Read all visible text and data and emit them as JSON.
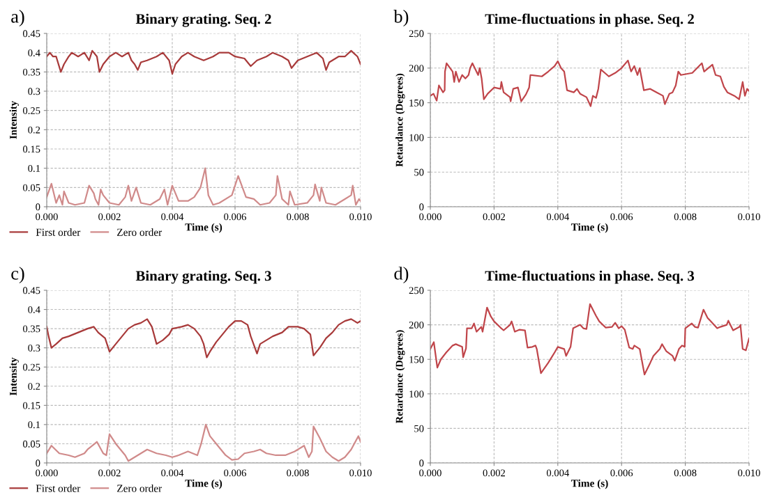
{
  "chart_data": [
    {
      "type": "line",
      "title": "Binary grating. Seq. 2",
      "xlabel": "Time (s)",
      "ylabel": "Intensity",
      "annotations": [
        "a)"
      ],
      "legend": "bottom left",
      "grid": true,
      "marker": "none",
      "line_style": "solid",
      "xlim": [
        0,
        0.01
      ],
      "xticks": [
        {
          "value": 0,
          "label": "0.000"
        },
        {
          "value": 0.002,
          "label": "0.002"
        },
        {
          "value": 0.004,
          "label": "0.004"
        },
        {
          "value": 0.006,
          "label": "0.006"
        },
        {
          "value": 0.008,
          "label": "0.008"
        },
        {
          "value": 0.01,
          "label": "0.010"
        }
      ],
      "ylim": [
        0,
        0.45
      ],
      "yticks": [
        0,
        0.05,
        0.1,
        0.15,
        0.2,
        0.25,
        0.3,
        0.35,
        0.4,
        0.45
      ],
      "series": [
        {
          "name": "First order",
          "color": "#a83a3a",
          "x": [
            0,
            0.0001,
            0.0002,
            0.0003,
            0.00045,
            0.00055,
            0.0007,
            0.0008,
            0.001,
            0.0012,
            0.00135,
            0.00145,
            0.0016,
            0.00168,
            0.0018,
            0.0019,
            0.002,
            0.0022,
            0.0024,
            0.0026,
            0.0027,
            0.0028,
            0.0029,
            0.003,
            0.0032,
            0.0035,
            0.0037,
            0.0039,
            0.004,
            0.0041,
            0.0043,
            0.0045,
            0.0047,
            0.005,
            0.0053,
            0.0055,
            0.0058,
            0.006,
            0.0063,
            0.0065,
            0.0067,
            0.007,
            0.0072,
            0.0075,
            0.0077,
            0.0078,
            0.008,
            0.0083,
            0.0086,
            0.0088,
            0.0089,
            0.009,
            0.0093,
            0.0095,
            0.0097,
            0.0099,
            0.01
          ],
          "values": [
            0.39,
            0.4,
            0.39,
            0.39,
            0.35,
            0.37,
            0.39,
            0.4,
            0.39,
            0.4,
            0.38,
            0.405,
            0.39,
            0.35,
            0.37,
            0.38,
            0.39,
            0.4,
            0.39,
            0.4,
            0.38,
            0.37,
            0.355,
            0.375,
            0.38,
            0.39,
            0.4,
            0.38,
            0.345,
            0.37,
            0.39,
            0.4,
            0.39,
            0.38,
            0.39,
            0.4,
            0.4,
            0.39,
            0.385,
            0.365,
            0.38,
            0.39,
            0.4,
            0.39,
            0.38,
            0.36,
            0.38,
            0.39,
            0.4,
            0.385,
            0.355,
            0.375,
            0.39,
            0.39,
            0.405,
            0.39,
            0.37
          ]
        },
        {
          "name": "Zero order",
          "color": "#d08a8a",
          "x": [
            0,
            0.00015,
            0.0003,
            0.0004,
            0.0005,
            0.00055,
            0.0007,
            0.0009,
            0.0012,
            0.00135,
            0.0015,
            0.00155,
            0.00165,
            0.00172,
            0.0018,
            0.002,
            0.0023,
            0.0025,
            0.0026,
            0.0027,
            0.00285,
            0.003,
            0.0033,
            0.0036,
            0.00375,
            0.00385,
            0.004,
            0.0042,
            0.0045,
            0.0047,
            0.0049,
            0.00505,
            0.00515,
            0.0053,
            0.0055,
            0.0059,
            0.0061,
            0.00635,
            0.0066,
            0.0068,
            0.0071,
            0.0073,
            0.00735,
            0.0075,
            0.0077,
            0.00775,
            0.0079,
            0.0083,
            0.0085,
            0.00855,
            0.0087,
            0.00875,
            0.0089,
            0.0092,
            0.0095,
            0.0097,
            0.00975,
            0.00985,
            0.00995,
            0.01
          ],
          "values": [
            0.025,
            0.06,
            0.01,
            0.03,
            0.005,
            0.04,
            0.01,
            0.005,
            0.01,
            0.055,
            0.035,
            0.02,
            0.005,
            0.045,
            0.03,
            0.01,
            0.005,
            0.025,
            0.055,
            0.015,
            0.05,
            0.01,
            0.005,
            0.02,
            0.045,
            0.005,
            0.055,
            0.015,
            0.015,
            0.025,
            0.05,
            0.1,
            0.03,
            0.005,
            0.01,
            0.03,
            0.08,
            0.025,
            0.02,
            0.005,
            0.01,
            0.03,
            0.08,
            0.02,
            0.005,
            0.04,
            0.005,
            0.01,
            0.03,
            0.058,
            0.015,
            0.05,
            0.01,
            0.005,
            0.02,
            0.03,
            0.055,
            0.005,
            0.02,
            0.015
          ]
        }
      ]
    },
    {
      "type": "line",
      "title": "Time-fluctuations in phase. Seq. 2",
      "xlabel": "Time (s)",
      "ylabel": "Retardance (Degrees)",
      "annotations": [
        "b)"
      ],
      "grid": true,
      "marker": "none",
      "line_style": "solid",
      "xlim": [
        0,
        0.01
      ],
      "xticks": [
        {
          "value": 0,
          "label": "0.000"
        },
        {
          "value": 0.002,
          "label": "0.002"
        },
        {
          "value": 0.004,
          "label": "0.004"
        },
        {
          "value": 0.006,
          "label": "0.006"
        },
        {
          "value": 0.008,
          "label": "0.008"
        },
        {
          "value": 0.01,
          "label": "0.010"
        }
      ],
      "ylim": [
        0,
        250
      ],
      "yticks": [
        0,
        50,
        100,
        150,
        200,
        250
      ],
      "series": [
        {
          "color": "#c0454a",
          "x": [
            0,
            0.0001,
            0.0002,
            0.00027,
            0.0004,
            0.00045,
            0.00046,
            0.00051,
            0.0007,
            0.00075,
            0.0008,
            0.0009,
            0.001,
            0.0011,
            0.0012,
            0.00125,
            0.00132,
            0.0015,
            0.00155,
            0.00161,
            0.00168,
            0.0018,
            0.002,
            0.0022,
            0.00223,
            0.0023,
            0.0025,
            0.00252,
            0.0026,
            0.00275,
            0.00285,
            0.003,
            0.0031,
            0.00314,
            0.0035,
            0.0037,
            0.0039,
            0.004,
            0.0041,
            0.0042,
            0.00429,
            0.0045,
            0.0046,
            0.0047,
            0.0049,
            0.00503,
            0.0051,
            0.0052,
            0.00527,
            0.00535,
            0.0055,
            0.0056,
            0.0058,
            0.006,
            0.0062,
            0.0063,
            0.0064,
            0.0065,
            0.00657,
            0.0067,
            0.0069,
            0.0071,
            0.0073,
            0.00736,
            0.0075,
            0.0076,
            0.0077,
            0.00778,
            0.00786,
            0.00822,
            0.00852,
            0.00859,
            0.00885,
            0.00895,
            0.0091,
            0.00921,
            0.00932,
            0.00954,
            0.00969,
            0.0098,
            0.00987,
            0.00994,
            0.01
          ],
          "values": [
            160,
            163,
            153,
            175,
            165,
            168,
            195,
            207,
            195,
            180,
            195,
            180,
            190,
            185,
            190,
            200,
            207,
            190,
            200,
            185,
            155,
            163,
            172,
            170,
            180,
            165,
            158,
            152,
            170,
            172,
            152,
            162,
            172,
            190,
            188,
            195,
            203,
            210,
            200,
            195,
            168,
            165,
            170,
            163,
            158,
            145,
            160,
            157,
            170,
            198,
            192,
            188,
            193,
            200,
            211,
            195,
            203,
            190,
            200,
            168,
            170,
            165,
            160,
            148,
            163,
            165,
            175,
            195,
            190,
            193,
            207,
            195,
            205,
            190,
            188,
            173,
            165,
            160,
            155,
            180,
            160,
            170,
            167
          ]
        }
      ]
    },
    {
      "type": "line",
      "title": "Binary grating. Seq. 3",
      "xlabel": "Time (s)",
      "ylabel": "Intensity",
      "annotations": [
        "c)"
      ],
      "legend": "bottom left",
      "grid": true,
      "marker": "none",
      "line_style": "solid",
      "xlim": [
        0,
        0.01
      ],
      "xticks": [
        {
          "value": 0,
          "label": "0.000"
        },
        {
          "value": 0.002,
          "label": "0.002"
        },
        {
          "value": 0.004,
          "label": "0.004"
        },
        {
          "value": 0.006,
          "label": "0.006"
        },
        {
          "value": 0.008,
          "label": "0.008"
        },
        {
          "value": 0.01,
          "label": "0.010"
        }
      ],
      "ylim": [
        0,
        0.45
      ],
      "yticks": [
        0,
        0.05,
        0.1,
        0.15,
        0.2,
        0.25,
        0.3,
        0.35,
        0.4,
        0.45
      ],
      "series": [
        {
          "name": "First order",
          "color": "#a83a3a",
          "x": [
            0,
            6e-05,
            0.00015,
            0.0003,
            0.0005,
            0.0007,
            0.001,
            0.0013,
            0.0015,
            0.00164,
            0.00186,
            0.002,
            0.0022,
            0.0024,
            0.0026,
            0.0028,
            0.003,
            0.0032,
            0.00335,
            0.0035,
            0.0037,
            0.0039,
            0.004,
            0.0043,
            0.0045,
            0.0047,
            0.0049,
            0.005,
            0.0051,
            0.0052,
            0.0054,
            0.0056,
            0.0058,
            0.006,
            0.0062,
            0.0064,
            0.0065,
            0.0067,
            0.0068,
            0.007,
            0.0072,
            0.0075,
            0.0077,
            0.008,
            0.0082,
            0.0084,
            0.0085,
            0.0087,
            0.0089,
            0.0091,
            0.0093,
            0.0095,
            0.0097,
            0.0099,
            0.01
          ],
          "values": [
            0.355,
            0.33,
            0.3,
            0.31,
            0.325,
            0.33,
            0.34,
            0.35,
            0.355,
            0.34,
            0.325,
            0.29,
            0.31,
            0.33,
            0.35,
            0.36,
            0.365,
            0.375,
            0.355,
            0.31,
            0.32,
            0.335,
            0.35,
            0.355,
            0.36,
            0.35,
            0.33,
            0.31,
            0.275,
            0.29,
            0.315,
            0.335,
            0.355,
            0.37,
            0.37,
            0.36,
            0.33,
            0.285,
            0.31,
            0.32,
            0.33,
            0.34,
            0.355,
            0.355,
            0.35,
            0.335,
            0.28,
            0.3,
            0.325,
            0.34,
            0.36,
            0.37,
            0.375,
            0.365,
            0.37
          ]
        },
        {
          "name": "Zero order",
          "color": "#d08a8a",
          "x": [
            0,
            0.00015,
            0.0004,
            0.0007,
            0.0009,
            0.0012,
            0.0013,
            0.00153,
            0.0016,
            0.0018,
            0.0019,
            0.002,
            0.0022,
            0.0025,
            0.0026,
            0.0028,
            0.0032,
            0.0035,
            0.0038,
            0.004,
            0.0042,
            0.0045,
            0.0048,
            0.00492,
            0.00507,
            0.0052,
            0.0055,
            0.0057,
            0.0059,
            0.0061,
            0.0063,
            0.0066,
            0.0068,
            0.007,
            0.0073,
            0.0076,
            0.0079,
            0.008,
            0.0082,
            0.00835,
            0.00845,
            0.0085,
            0.0087,
            0.0089,
            0.0091,
            0.0093,
            0.0095,
            0.0097,
            0.00993,
            0.01
          ],
          "values": [
            0.025,
            0.045,
            0.025,
            0.02,
            0.015,
            0.025,
            0.035,
            0.05,
            0.055,
            0.025,
            0.02,
            0.075,
            0.05,
            0.02,
            0.005,
            0.015,
            0.035,
            0.025,
            0.02,
            0.015,
            0.02,
            0.03,
            0.02,
            0.05,
            0.1,
            0.07,
            0.04,
            0.02,
            0.008,
            0.01,
            0.025,
            0.03,
            0.035,
            0.025,
            0.02,
            0.02,
            0.03,
            0.035,
            0.045,
            0.015,
            0.03,
            0.095,
            0.065,
            0.03,
            0.015,
            0.005,
            0.015,
            0.035,
            0.07,
            0.055
          ]
        }
      ]
    },
    {
      "type": "line",
      "title": "Time-fluctuations in phase. Seq. 3",
      "xlabel": "Time (s)",
      "ylabel": "Retardance (Degrees)",
      "annotations": [
        "d)"
      ],
      "grid": true,
      "marker": "none",
      "line_style": "solid",
      "xlim": [
        0,
        0.01
      ],
      "xticks": [
        {
          "value": 0,
          "label": "0.000"
        },
        {
          "value": 0.002,
          "label": "0.002"
        },
        {
          "value": 0.004,
          "label": "0.004"
        },
        {
          "value": 0.006,
          "label": "0.006"
        },
        {
          "value": 0.008,
          "label": "0.008"
        },
        {
          "value": 0.01,
          "label": "0.010"
        }
      ],
      "ylim": [
        0,
        250
      ],
      "yticks": [
        0,
        50,
        100,
        150,
        200,
        250
      ],
      "series": [
        {
          "color": "#c0454a",
          "x": [
            0,
            0.00011,
            0.00022,
            0.00033,
            0.0005,
            0.0007,
            0.0008,
            0.001,
            0.00103,
            0.00112,
            0.00115,
            0.0013,
            0.00137,
            0.00145,
            0.0016,
            0.00164,
            0.00178,
            0.0019,
            0.002,
            0.0022,
            0.0023,
            0.0025,
            0.00255,
            0.00265,
            0.0028,
            0.00297,
            0.00305,
            0.0032,
            0.0033,
            0.00334,
            0.00347,
            0.0037,
            0.0039,
            0.004,
            0.0042,
            0.00426,
            0.0044,
            0.00448,
            0.0047,
            0.0048,
            0.0049,
            0.00501,
            0.0052,
            0.0053,
            0.0055,
            0.0057,
            0.0058,
            0.00591,
            0.006,
            0.0061,
            0.00624,
            0.00635,
            0.0064,
            0.00657,
            0.00672,
            0.0069,
            0.007,
            0.0072,
            0.00727,
            0.0074,
            0.0076,
            0.00767,
            0.0078,
            0.0079,
            0.00798,
            0.008,
            0.0082,
            0.0083,
            0.0084,
            0.00857,
            0.0087,
            0.0089,
            0.009,
            0.0091,
            0.0093,
            0.00935,
            0.0095,
            0.0097,
            0.00973,
            0.0098,
            0.0099,
            0.01
          ],
          "values": [
            165,
            175,
            138,
            150,
            160,
            170,
            172,
            168,
            153,
            166,
            195,
            195,
            202,
            190,
            197,
            190,
            225,
            212,
            205,
            196,
            192,
            200,
            205,
            190,
            193,
            192,
            167,
            168,
            170,
            165,
            130,
            145,
            160,
            168,
            165,
            155,
            168,
            195,
            200,
            195,
            194,
            230,
            213,
            205,
            196,
            197,
            203,
            195,
            198,
            193,
            167,
            165,
            170,
            165,
            128,
            145,
            155,
            165,
            172,
            162,
            155,
            148,
            165,
            170,
            168,
            195,
            202,
            197,
            196,
            222,
            210,
            200,
            195,
            197,
            200,
            206,
            192,
            197,
            200,
            165,
            163,
            180
          ]
        }
      ]
    }
  ]
}
